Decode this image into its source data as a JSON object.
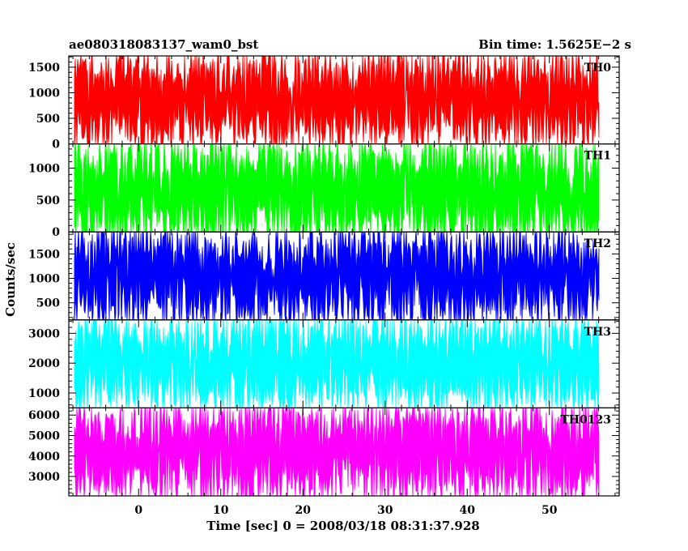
{
  "header": {
    "left": "ae080318083137_wam0_bst",
    "right": "Bin time: 1.5625E−2 s"
  },
  "chart_data": {
    "type": "line",
    "title": "ae080318083137_wam0_bst",
    "subtitle": "Bin time: 1.5625E−2 s",
    "xlabel": "Time [sec] 0 = 2008/03/18 08:31:37.928",
    "ylabel": "Counts/sec",
    "xlim": [
      -8.5,
      58.5
    ],
    "data_xrange": [
      -7.9,
      56.1
    ],
    "bin_time_s": 0.015625,
    "x_ticks": [
      0,
      10,
      20,
      30,
      40,
      50
    ],
    "x_tick_labels": [
      "0",
      "10",
      "20",
      "30",
      "40",
      "50"
    ],
    "grid": false,
    "legend": "none",
    "panels": [
      {
        "name": "TH0",
        "color": "#ff0000",
        "ylim": [
          0,
          1720
        ],
        "y_ticks": [
          0,
          500,
          1000,
          1500
        ],
        "y_tick_labels": [
          "0",
          "500",
          "1000",
          "1500"
        ],
        "mean": 870,
        "typical_min": 150,
        "typical_max": 1650
      },
      {
        "name": "TH1",
        "color": "#00ff00",
        "ylim": [
          0,
          1380
        ],
        "y_ticks": [
          0,
          500,
          1000
        ],
        "y_tick_labels": [
          "0",
          "500",
          "1000"
        ],
        "mean": 640,
        "typical_min": 60,
        "typical_max": 1300
      },
      {
        "name": "TH2",
        "color": "#0000ff",
        "ylim": [
          150,
          1950
        ],
        "y_ticks": [
          500,
          1000,
          1500
        ],
        "y_tick_labels": [
          "500",
          "1000",
          "1500"
        ],
        "mean": 1050,
        "typical_min": 300,
        "typical_max": 1880
      },
      {
        "name": "TH3",
        "color": "#00ffff",
        "ylim": [
          500,
          3450
        ],
        "y_ticks": [
          1000,
          2000,
          3000
        ],
        "y_tick_labels": [
          "1000",
          "2000",
          "3000"
        ],
        "mean": 2050,
        "typical_min": 800,
        "typical_max": 3350
      },
      {
        "name": "TH0123",
        "color": "#ff00ff",
        "ylim": [
          2050,
          6350
        ],
        "y_ticks": [
          3000,
          4000,
          5000,
          6000
        ],
        "y_tick_labels": [
          "3000",
          "4000",
          "5000",
          "6000"
        ],
        "mean": 4200,
        "typical_min": 2400,
        "typical_max": 6250
      }
    ]
  }
}
